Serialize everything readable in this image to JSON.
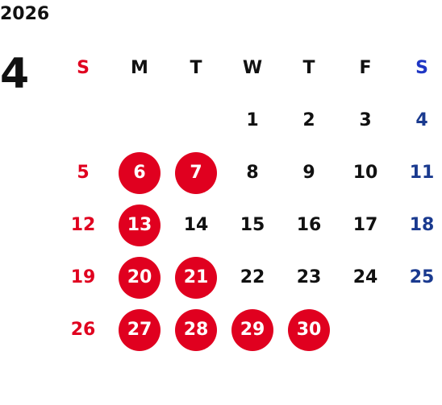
{
  "calendar": {
    "year": "2026",
    "month": "4",
    "weekdays": [
      "S",
      "M",
      "T",
      "W",
      "T",
      "F",
      "S"
    ],
    "colors": {
      "sunday": "#e0001f",
      "saturday": "#1a3a8f",
      "holiday_bg": "#e0001f",
      "default": "#111111"
    },
    "weeks": [
      [
        {
          "day": ""
        },
        {
          "day": ""
        },
        {
          "day": ""
        },
        {
          "day": "1"
        },
        {
          "day": "2"
        },
        {
          "day": "3"
        },
        {
          "day": "4"
        }
      ],
      [
        {
          "day": "5"
        },
        {
          "day": "6",
          "holiday": true
        },
        {
          "day": "7",
          "holiday": true
        },
        {
          "day": "8"
        },
        {
          "day": "9"
        },
        {
          "day": "10"
        },
        {
          "day": "11"
        }
      ],
      [
        {
          "day": "12"
        },
        {
          "day": "13",
          "holiday": true
        },
        {
          "day": "14"
        },
        {
          "day": "15"
        },
        {
          "day": "16"
        },
        {
          "day": "17"
        },
        {
          "day": "18"
        }
      ],
      [
        {
          "day": "19"
        },
        {
          "day": "20",
          "holiday": true
        },
        {
          "day": "21",
          "holiday": true
        },
        {
          "day": "22"
        },
        {
          "day": "23"
        },
        {
          "day": "24"
        },
        {
          "day": "25"
        }
      ],
      [
        {
          "day": "26"
        },
        {
          "day": "27",
          "holiday": true
        },
        {
          "day": "28",
          "holiday": true
        },
        {
          "day": "29",
          "holiday": true
        },
        {
          "day": "30",
          "holiday": true
        },
        {
          "day": ""
        },
        {
          "day": ""
        }
      ]
    ]
  }
}
